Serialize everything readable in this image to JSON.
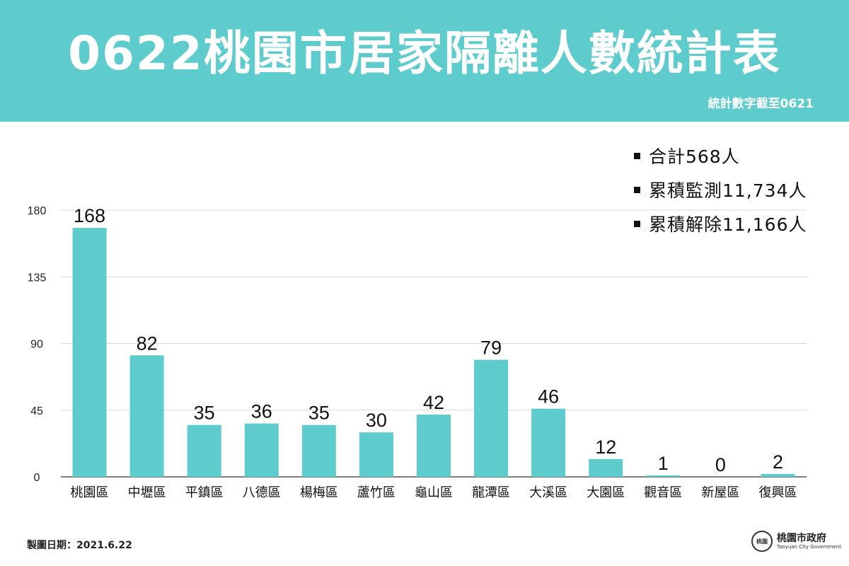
{
  "header": {
    "title": "0622桃園市居家隔離人數統計表",
    "subtitle": "統計數字截至0621"
  },
  "summary": [
    "合計568人",
    "累積監測11,734人",
    "累積解除11,166人"
  ],
  "colors": {
    "accent": "#5ecccc",
    "bar": "#5ecccc"
  },
  "chart_data": {
    "type": "bar",
    "title": "0622桃園市居家隔離人數統計表",
    "categories": [
      "桃園區",
      "中壢區",
      "平鎮區",
      "八德區",
      "楊梅區",
      "蘆竹區",
      "龜山區",
      "龍潭區",
      "大溪區",
      "大園區",
      "觀音區",
      "新屋區",
      "復興區"
    ],
    "values": [
      168,
      82,
      35,
      36,
      35,
      30,
      42,
      79,
      46,
      12,
      1,
      0,
      2
    ],
    "ylim": [
      0,
      180
    ],
    "yticks": [
      0,
      45,
      90,
      135,
      180
    ],
    "grid": true,
    "xlabel": "",
    "ylabel": ""
  },
  "footer": {
    "date_text": "製圖日期：2021.6.22",
    "logo_cn": "桃園市政府",
    "logo_en": "Taoyuan City Government",
    "seal_text": "桃園"
  }
}
